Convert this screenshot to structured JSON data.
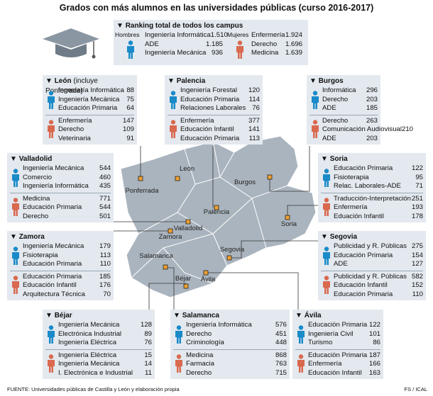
{
  "title": "Grados con más alumnos en las universidades públicas (curso 2016-2017)",
  "ranking": {
    "title": "Ranking total de todos los campus",
    "men_label": "Hombres",
    "women_label": "Mujeres",
    "men": [
      {
        "label": "Ingeniería Informática",
        "value": "1.510"
      },
      {
        "label": "ADE",
        "value": "1.185"
      },
      {
        "label": "Ingeniería Mecánica",
        "value": 936
      }
    ],
    "women": [
      {
        "label": "Enfermería",
        "value": "1.924"
      },
      {
        "label": "Derecho",
        "value": "1.696"
      },
      {
        "label": "Medicina",
        "value": "1.639"
      }
    ]
  },
  "regions": [
    {
      "name": "León",
      "note": "(incluye Ponferrada)",
      "men": [
        {
          "label": "Ingeniería Informática",
          "value": 88
        },
        {
          "label": "Ingeniería Mecánica",
          "value": 75
        },
        {
          "label": "Educación Primaria",
          "value": 64
        }
      ],
      "women": [
        {
          "label": "Enfermería",
          "value": 147
        },
        {
          "label": "Derecho",
          "value": 109
        },
        {
          "label": "Veterinaria",
          "value": 91
        }
      ]
    },
    {
      "name": "Palencia",
      "men": [
        {
          "label": "Ingeniería Forestal",
          "value": 120
        },
        {
          "label": "Educación Primaria",
          "value": 114
        },
        {
          "label": "Relaciones Laborales",
          "value": 76
        }
      ],
      "women": [
        {
          "label": "Enfermería",
          "value": 377
        },
        {
          "label": "Educación Infantil",
          "value": 141
        },
        {
          "label": "Educación Primaria",
          "value": 113
        }
      ]
    },
    {
      "name": "Burgos",
      "men": [
        {
          "label": "Informática",
          "value": 296
        },
        {
          "label": "Derecho",
          "value": 203
        },
        {
          "label": "ADE",
          "value": 185
        }
      ],
      "women": [
        {
          "label": "Derecho",
          "value": 263
        },
        {
          "label": "Comunicación Audiovisual",
          "value": 210
        },
        {
          "label": "ADE",
          "value": 203
        }
      ]
    },
    {
      "name": "Valladolid",
      "men": [
        {
          "label": "Ingeniería Mecánica",
          "value": 544
        },
        {
          "label": "Comercio",
          "value": 460
        },
        {
          "label": "Ingeniería Informática",
          "value": 435
        }
      ],
      "women": [
        {
          "label": "Medicina",
          "value": 771
        },
        {
          "label": "Educación Primaria",
          "value": 544
        },
        {
          "label": "Derecho",
          "value": 501
        }
      ]
    },
    {
      "name": "Soria",
      "men": [
        {
          "label": "Educación Primaria",
          "value": 122
        },
        {
          "label": "Fisioterapia",
          "value": 95
        },
        {
          "label": "Relac. Laborales-ADE",
          "value": 71
        }
      ],
      "women": [
        {
          "label": "Traducción-Interpretación",
          "value": 251
        },
        {
          "label": "Enfermería",
          "value": 193
        },
        {
          "label": "Eduación Infantil",
          "value": 178
        }
      ]
    },
    {
      "name": "Zamora",
      "men": [
        {
          "label": "Ingeniería Mecánica",
          "value": 179
        },
        {
          "label": "Fisioterapia",
          "value": 113
        },
        {
          "label": "Educación Primaria",
          "value": 110
        }
      ],
      "women": [
        {
          "label": "Educación Primaria",
          "value": 185
        },
        {
          "label": "Educación Infantil",
          "value": 176
        },
        {
          "label": "Arquitectura Técnica",
          "value": 70
        }
      ]
    },
    {
      "name": "Segovia",
      "men": [
        {
          "label": "Publicidad y R. Públicas",
          "value": 275
        },
        {
          "label": "Educación Primaria",
          "value": 154
        },
        {
          "label": "ADE",
          "value": 127
        }
      ],
      "women": [
        {
          "label": "Publicidad y R. Públicas",
          "value": 582
        },
        {
          "label": "Educación Infantil",
          "value": 152
        },
        {
          "label": "Educación Primaria",
          "value": 110
        }
      ]
    },
    {
      "name": "Béjar",
      "men": [
        {
          "label": "Ingeniería Mecánica",
          "value": 128
        },
        {
          "label": "Electrónica Industrial",
          "value": 89
        },
        {
          "label": "Ingeniería Eléctrica",
          "value": 76
        }
      ],
      "women": [
        {
          "label": "Ingeniería Eléctrica",
          "value": 15
        },
        {
          "label": "Ingeniería Mecánica",
          "value": 14
        },
        {
          "label": "I. Electrónica e Industrial",
          "value": 11
        }
      ]
    },
    {
      "name": "Salamanca",
      "men": [
        {
          "label": "Ingeniería Informática",
          "value": 576
        },
        {
          "label": "Derecho",
          "value": 451
        },
        {
          "label": "Criminología",
          "value": 448
        }
      ],
      "women": [
        {
          "label": "Medicina",
          "value": 868
        },
        {
          "label": "Farmacia",
          "value": 763
        },
        {
          "label": "Derecho",
          "value": 715
        }
      ]
    },
    {
      "name": "Ávila",
      "men": [
        {
          "label": "Educación Primaria",
          "value": 122
        },
        {
          "label": "Ingeniería Civil",
          "value": 101
        },
        {
          "label": "Turismo",
          "value": 86
        }
      ],
      "women": [
        {
          "label": "Educación Primaria",
          "value": 187
        },
        {
          "label": "Enfermería",
          "value": 166
        },
        {
          "label": "Educación Infantil",
          "value": 163
        }
      ]
    }
  ],
  "map": {
    "cities": [
      "León",
      "Ponferrada",
      "Burgos",
      "Palencia",
      "Valladolid",
      "Zamora",
      "Soria",
      "Segovia",
      "Salamanca",
      "Ávila",
      "Béjar"
    ]
  },
  "source": "FUENTE: Universidades públicas de Castilla y León y elaboración propia",
  "credit": "FS / ICAL"
}
